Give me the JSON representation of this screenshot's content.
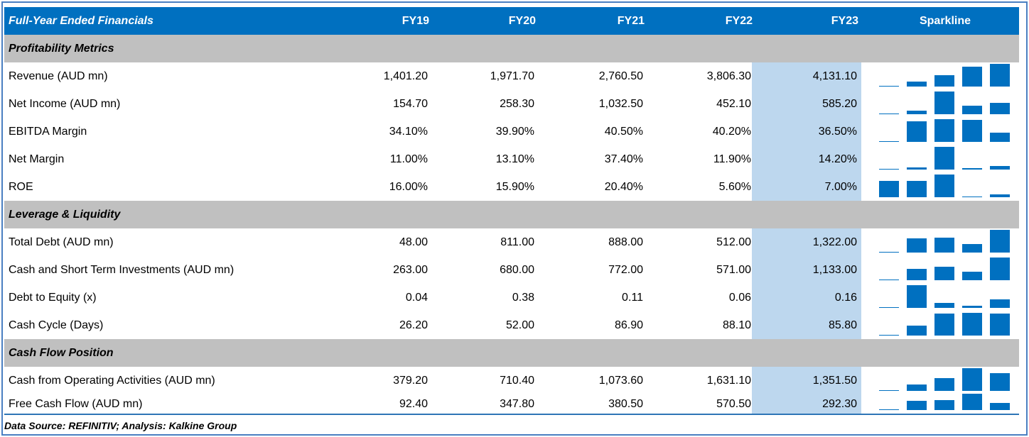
{
  "header": {
    "title": "Full-Year Ended Financials",
    "columns": [
      "FY19",
      "FY20",
      "FY21",
      "FY22",
      "FY23"
    ],
    "sparkline": "Sparkline"
  },
  "sections": [
    {
      "title": "Profitability Metrics",
      "rows": [
        {
          "label": "Revenue (AUD mn)",
          "cells": [
            {
              "value": 1401.2,
              "label": "1,401.20"
            },
            {
              "value": 1971.7,
              "label": "1,971.70"
            },
            {
              "value": 2760.5,
              "label": "2,760.50"
            },
            {
              "value": 3806.3,
              "label": "3,806.30"
            },
            {
              "value": 4131.1,
              "label": "4,131.10"
            }
          ]
        },
        {
          "label": "Net Income (AUD mn)",
          "cells": [
            {
              "value": 154.7,
              "label": "154.70"
            },
            {
              "value": 258.3,
              "label": "258.30"
            },
            {
              "value": 1032.5,
              "label": "1,032.50"
            },
            {
              "value": 452.1,
              "label": "452.10"
            },
            {
              "value": 585.2,
              "label": "585.20"
            }
          ]
        },
        {
          "label": "EBITDA Margin",
          "cells": [
            {
              "value": 34.1,
              "label": "34.10%"
            },
            {
              "value": 39.9,
              "label": "39.90%"
            },
            {
              "value": 40.5,
              "label": "40.50%"
            },
            {
              "value": 40.2,
              "label": "40.20%"
            },
            {
              "value": 36.5,
              "label": "36.50%"
            }
          ]
        },
        {
          "label": "Net Margin",
          "cells": [
            {
              "value": 11,
              "label": "11.00%"
            },
            {
              "value": 13.1,
              "label": "13.10%"
            },
            {
              "value": 37.4,
              "label": "37.40%"
            },
            {
              "value": 11.9,
              "label": "11.90%"
            },
            {
              "value": 14.2,
              "label": "14.20%"
            }
          ]
        },
        {
          "label": "ROE",
          "cells": [
            {
              "value": 16,
              "label": "16.00%"
            },
            {
              "value": 15.9,
              "label": "15.90%"
            },
            {
              "value": 20.4,
              "label": "20.40%"
            },
            {
              "value": 5.6,
              "label": "5.60%"
            },
            {
              "value": 7,
              "label": "7.00%"
            }
          ]
        }
      ]
    },
    {
      "title": "Leverage & Liquidity",
      "rows": [
        {
          "label": "Total Debt (AUD mn)",
          "cells": [
            {
              "value": 48,
              "label": "48.00"
            },
            {
              "value": 811,
              "label": "811.00"
            },
            {
              "value": 888,
              "label": "888.00"
            },
            {
              "value": 512,
              "label": "512.00"
            },
            {
              "value": 1322,
              "label": "1,322.00"
            }
          ]
        },
        {
          "label": "Cash and Short Term Investments (AUD mn)",
          "cells": [
            {
              "value": 263,
              "label": "263.00"
            },
            {
              "value": 680,
              "label": "680.00"
            },
            {
              "value": 772,
              "label": "772.00"
            },
            {
              "value": 571,
              "label": "571.00"
            },
            {
              "value": 1133,
              "label": "1,133.00"
            }
          ]
        },
        {
          "label": "Debt to Equity (x)",
          "cells": [
            {
              "value": 0.04,
              "label": "0.04"
            },
            {
              "value": 0.38,
              "label": "0.38"
            },
            {
              "value": 0.11,
              "label": "0.11"
            },
            {
              "value": 0.06,
              "label": "0.06"
            },
            {
              "value": 0.16,
              "label": "0.16"
            }
          ]
        },
        {
          "label": "Cash Cycle (Days)",
          "cells": [
            {
              "value": 26.2,
              "label": "26.20"
            },
            {
              "value": 52,
              "label": "52.00"
            },
            {
              "value": 86.9,
              "label": "86.90"
            },
            {
              "value": 88.1,
              "label": "88.10"
            },
            {
              "value": 85.8,
              "label": "85.80"
            }
          ]
        }
      ]
    },
    {
      "title": "Cash Flow Position",
      "rows": [
        {
          "label": "Cash from Operating Activities (AUD mn)",
          "cells": [
            {
              "value": 379.2,
              "label": "379.20"
            },
            {
              "value": 710.4,
              "label": "710.40"
            },
            {
              "value": 1073.6,
              "label": "1,073.60"
            },
            {
              "value": 1631.1,
              "label": "1,631.10"
            },
            {
              "value": 1351.5,
              "label": "1,351.50"
            }
          ]
        },
        {
          "label": "Free Cash Flow (AUD mn)",
          "cells": [
            {
              "value": 92.4,
              "label": "92.40"
            },
            {
              "value": 347.8,
              "label": "347.80"
            },
            {
              "value": 380.5,
              "label": "380.50"
            },
            {
              "value": 570.5,
              "label": "570.50"
            },
            {
              "value": 292.3,
              "label": "292.30"
            }
          ]
        }
      ]
    }
  ],
  "footer": "Data Source: REFINITIV; Analysis: Kalkine Group"
}
